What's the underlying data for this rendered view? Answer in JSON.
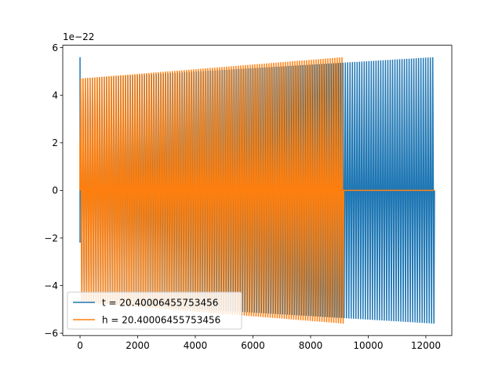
{
  "chart_data": {
    "type": "line",
    "title": "",
    "xlabel": "",
    "ylabel": "",
    "offset_text": "1e−22",
    "xlim": [
      -600,
      12900
    ],
    "ylim": [
      -6.1,
      6.1
    ],
    "x_ticks": [
      0,
      2000,
      4000,
      6000,
      8000,
      10000,
      12000
    ],
    "x_tick_labels": [
      "0",
      "2000",
      "4000",
      "6000",
      "8000",
      "10000",
      "12000"
    ],
    "y_ticks": [
      -6,
      -4,
      -2,
      0,
      2,
      4,
      6
    ],
    "y_tick_labels": [
      "−6",
      "−4",
      "−2",
      "0",
      "2",
      "4",
      "6"
    ],
    "grid": false,
    "legend_position": "lower-left",
    "series": [
      {
        "name": "t = 20.40006455753456",
        "color": "#1f77b4",
        "x_start": 0,
        "x_end": 12300,
        "n_cycles": 150,
        "amplitude_start": 4.7,
        "amplitude_end": 5.6,
        "initial_spike": 5.6
      },
      {
        "name": "h = 20.40006455753456",
        "color": "#ff7f0e",
        "x_start": 0,
        "x_end": 9150,
        "n_cycles": 112,
        "amplitude_start": 4.7,
        "amplitude_end": 5.6,
        "tail_start": 9150,
        "tail_end": 12300,
        "tail_value": 0
      }
    ]
  }
}
